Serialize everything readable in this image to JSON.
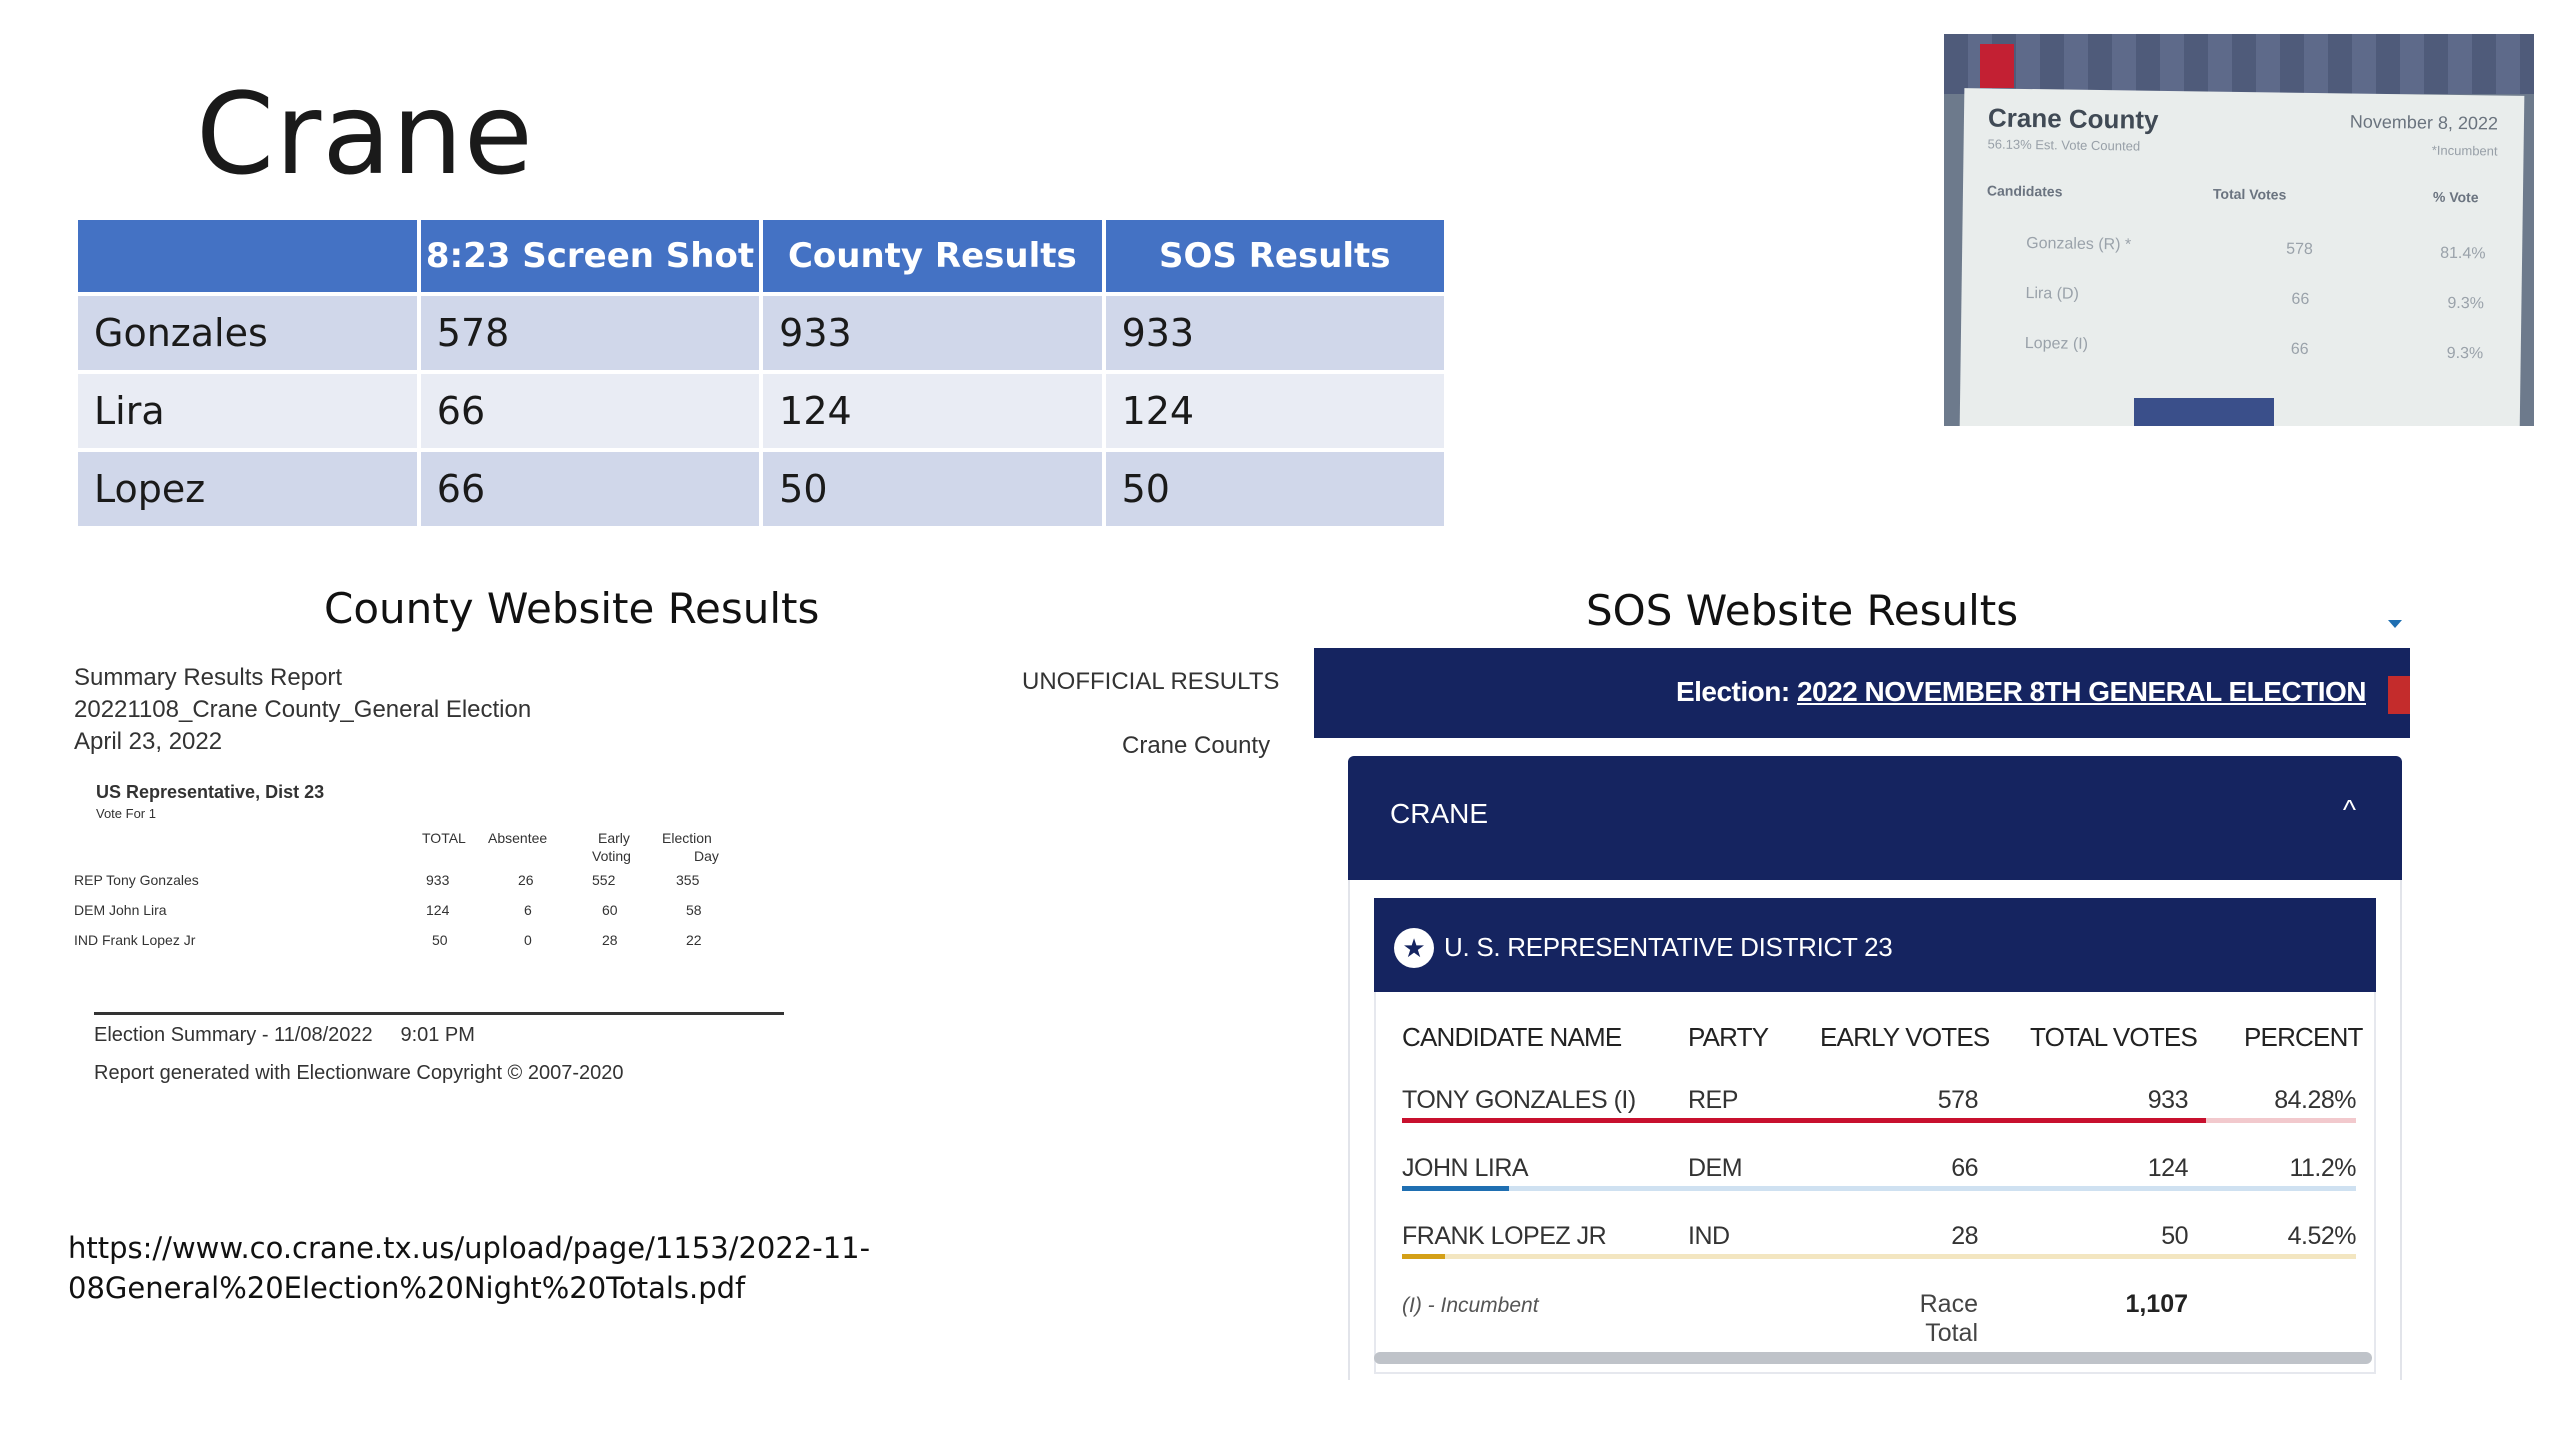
{
  "title": "Crane",
  "comparison_table": {
    "headers": [
      "",
      "8:23 Screen Shot",
      "County Results",
      "SOS Results"
    ],
    "rows": [
      [
        "Gonzales",
        "578",
        "933",
        "933"
      ],
      [
        "Lira",
        "66",
        "124",
        "124"
      ],
      [
        "Lopez",
        "66",
        "50",
        "50"
      ]
    ]
  },
  "photo": {
    "title": "Crane County",
    "date": "November 8, 2022",
    "subtitle": "56.13% Est. Vote Counted",
    "incumbent_note": "*Incumbent",
    "headers": [
      "Candidates",
      "Total Votes",
      "% Vote"
    ],
    "rows": [
      [
        "Gonzales (R) *",
        "578",
        "81.4%"
      ],
      [
        "Lira (D)",
        "66",
        "9.3%"
      ],
      [
        "Lopez (I)",
        "66",
        "9.3%"
      ]
    ]
  },
  "county_section": {
    "heading": "County Website Results",
    "report_title": "Summary Results Report",
    "report_name": "20221108_Crane County_General Election",
    "report_date": "April 23, 2022",
    "unofficial": "UNOFFICIAL RESULTS",
    "county": "Crane County",
    "race": "US Representative, Dist 23",
    "vote_for": "Vote For 1",
    "col_total": "TOTAL",
    "col_absentee": "Absentee",
    "col_early_1": "Early",
    "col_early_2": "Voting",
    "col_election_1": "Election",
    "col_election_2": "Day",
    "rows": [
      {
        "name": "REP Tony Gonzales",
        "total": "933",
        "absentee": "26",
        "early": "552",
        "eday": "355"
      },
      {
        "name": "DEM John Lira",
        "total": "124",
        "absentee": "6",
        "early": "60",
        "eday": "58"
      },
      {
        "name": "IND Frank Lopez Jr",
        "total": "50",
        "absentee": "0",
        "early": "28",
        "eday": "22"
      }
    ],
    "summary_line": "Election Summary - 11/08/2022     9:01 PM",
    "generated_line": "Report generated with Electionware Copyright © 2007-2020",
    "url_line1": "https://www.co.crane.tx.us/upload/page/1153/2022-11-",
    "url_line2": "08General%20Election%20Night%20Totals.pdf"
  },
  "sos_section": {
    "heading": "SOS Website Results",
    "election_label": "Election:",
    "election_name": "2022 NOVEMBER 8TH GENERAL ELECTION",
    "county": "CRANE",
    "chevron": "^",
    "race_icon": "★",
    "race": "U. S. REPRESENTATIVE DISTRICT 23",
    "headers": {
      "name": "CANDIDATE NAME",
      "party": "PARTY",
      "early": "EARLY VOTES",
      "total": "TOTAL VOTES",
      "percent": "PERCENT"
    },
    "rows": [
      {
        "name": "TONY GONZALES (I)",
        "party": "REP",
        "early": "578",
        "total": "933",
        "percent": "84.28%",
        "pct_value": 84.28,
        "color": "#c8102e",
        "track": "#f2c9cd"
      },
      {
        "name": "JOHN LIRA",
        "party": "DEM",
        "early": "66",
        "total": "124",
        "percent": "11.2%",
        "pct_value": 11.2,
        "color": "#1f6fb2",
        "track": "#cfe1f1"
      },
      {
        "name": "FRANK LOPEZ JR",
        "party": "IND",
        "early": "28",
        "total": "50",
        "percent": "4.52%",
        "pct_value": 4.52,
        "color": "#d4a017",
        "track": "#f3e6c1"
      }
    ],
    "incumbent_note": "(I) - Incumbent",
    "race_total_label": "Race Total",
    "race_total": "1,107"
  }
}
